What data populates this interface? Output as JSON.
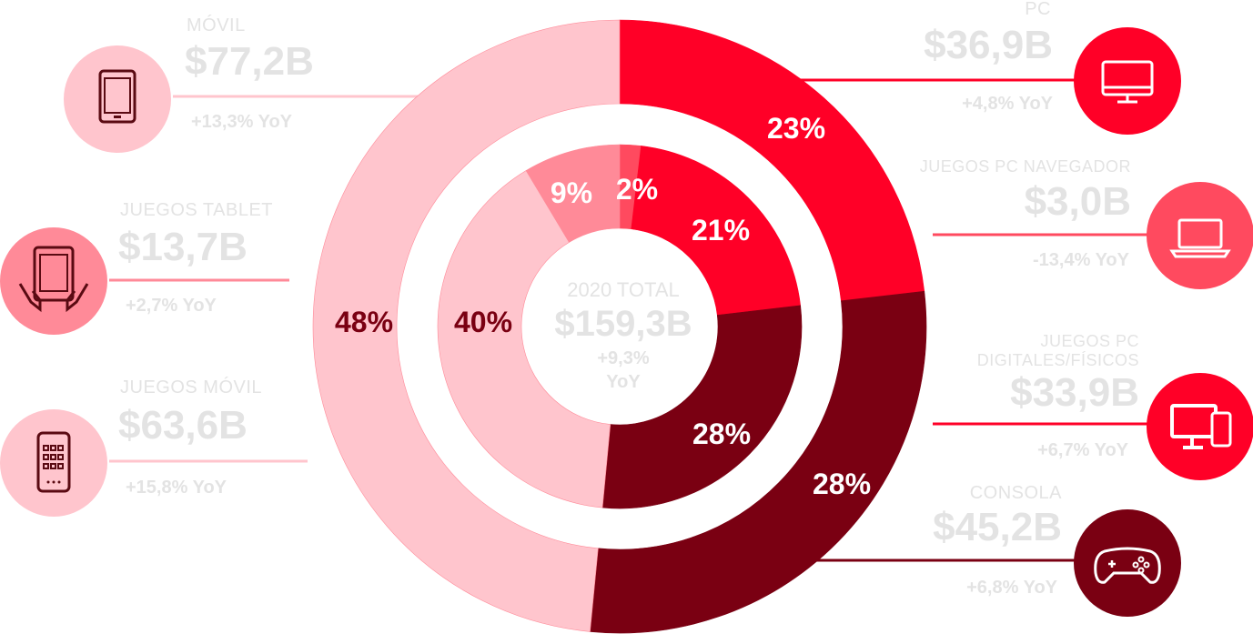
{
  "colors": {
    "pc": "#ff0027",
    "pc_browser": "#ff4a5f",
    "pc_digital": "#ff0027",
    "console": "#7a0012",
    "mobile": "#ffc5cd",
    "tablet": "#ff8a98",
    "smartphone": "#ffc5cd",
    "label_gray": "#e3e3e3"
  },
  "center": {
    "title": "2020 TOTAL",
    "value": "$159,3B",
    "yoy_line1": "+9,3%",
    "yoy_line2": "YoY"
  },
  "segments": {
    "mobile": {
      "category": "MÓVIL",
      "value": "$77,2B",
      "yoy": "+13,3% YoY"
    },
    "tablet": {
      "category": "JUEGOS TABLET",
      "value": "$13,7B",
      "yoy": "+2,7% YoY"
    },
    "smartphone": {
      "category": "JUEGOS MÓVIL",
      "value": "$63,6B",
      "yoy": "+15,8% YoY"
    },
    "pc": {
      "category": "PC",
      "value": "$36,9B",
      "yoy": "+4,8% YoY"
    },
    "pc_browser": {
      "category": "JUEGOS PC NAVEGADOR",
      "value": "$3,0B",
      "yoy": "-13,4% YoY"
    },
    "pc_digital": {
      "category_line1": "JUEGOS PC",
      "category_line2": "DIGITALES/FÍSICOS",
      "value": "$33,9B",
      "yoy": "+6,7% YoY"
    },
    "console": {
      "category": "CONSOLA",
      "value": "$45,2B",
      "yoy": "+6,8% YoY"
    }
  },
  "chart_data": {
    "type": "pie",
    "title": "2020 TOTAL",
    "total": 159.3,
    "unit": "$B",
    "rings": [
      {
        "name": "outer",
        "slices": [
          {
            "label": "PC",
            "value": 36.9,
            "percent": 23,
            "color": "#ff0027"
          },
          {
            "label": "CONSOLA",
            "value": 45.2,
            "percent": 28,
            "color": "#7a0012"
          },
          {
            "label": "MÓVIL",
            "value": 77.2,
            "percent": 48,
            "color": "#ffc5cd"
          }
        ]
      },
      {
        "name": "inner",
        "slices": [
          {
            "label": "JUEGOS PC NAVEGADOR",
            "value": 3.0,
            "percent": 2,
            "color": "#ff4a5f"
          },
          {
            "label": "JUEGOS PC DIGITALES/FÍSICOS",
            "value": 33.9,
            "percent": 21,
            "color": "#ff0027"
          },
          {
            "label": "CONSOLA",
            "value": 45.2,
            "percent": 28,
            "color": "#7a0012"
          },
          {
            "label": "JUEGOS MÓVIL",
            "value": 63.6,
            "percent": 40,
            "color": "#ffc5cd"
          },
          {
            "label": "JUEGOS TABLET",
            "value": 13.7,
            "percent": 9,
            "color": "#ff8a98"
          }
        ]
      }
    ],
    "percent_labels": {
      "pc": "23%",
      "console": "28%",
      "mobile": "48%",
      "pc_browser": "2%",
      "pc_digital": "21%",
      "console_inner": "28%",
      "smartphone": "40%",
      "tablet": "9%"
    }
  }
}
